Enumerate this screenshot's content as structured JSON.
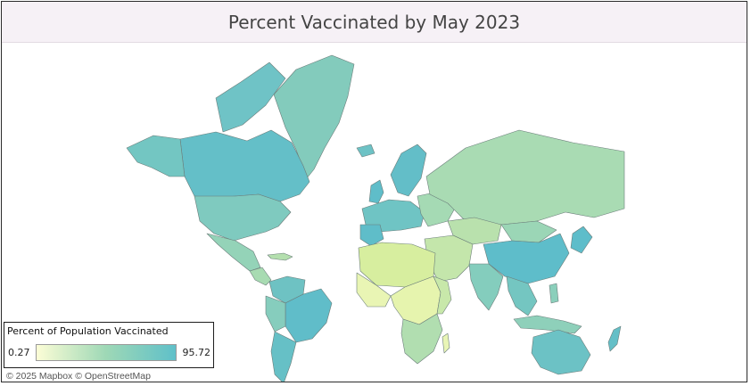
{
  "title": "Percent Vaccinated by May 2023",
  "legend": {
    "title": "Percent of Population Vaccinated",
    "min": "0.27",
    "max": "95.72",
    "colors": {
      "low": "#fcfdd6",
      "mid": "#9ed8b6",
      "high": "#5fc0c9"
    }
  },
  "attribution": "© 2025 Mapbox  © OpenStreetMap",
  "colors": {
    "frame_border": "#2b2b2b",
    "title_background": "#f6f1f6",
    "title_text": "#444444",
    "land_border": "#6b7d7a"
  }
}
